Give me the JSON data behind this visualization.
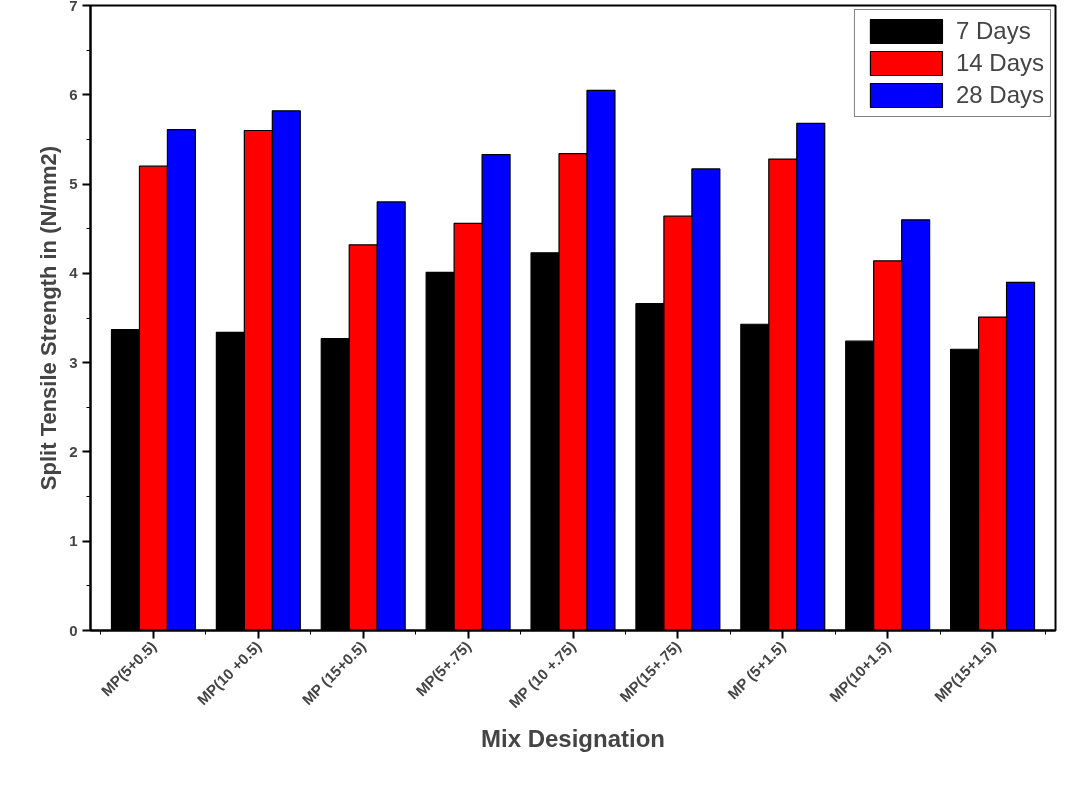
{
  "chart_data": {
    "type": "bar",
    "xlabel": "Mix Designation",
    "ylabel": "Split Tensile Strength in (N/mm2)",
    "categories": [
      "MP(5+0.5)",
      "MP(10 +0.5)",
      "MP (15+0.5)",
      "MP(5+.75)",
      "MP (10 +.75)",
      "MP(15+.75)",
      "MP (5+1.5)",
      "MP(10+1.5)",
      "MP(15+1.5)"
    ],
    "series": [
      {
        "name": "7 Days",
        "color": "#000000",
        "values": [
          3.37,
          3.34,
          3.27,
          4.01,
          4.23,
          3.66,
          3.43,
          3.24,
          3.15
        ]
      },
      {
        "name": "14 Days",
        "color": "#ff0000",
        "values": [
          5.2,
          5.6,
          4.32,
          4.56,
          5.34,
          4.64,
          5.28,
          4.14,
          3.51
        ]
      },
      {
        "name": "28 Days",
        "color": "#0000ff",
        "values": [
          5.61,
          5.82,
          4.8,
          5.33,
          6.05,
          5.17,
          5.68,
          4.6,
          3.9
        ]
      }
    ],
    "ylim": [
      0,
      7
    ],
    "yticks": [
      0,
      1,
      2,
      3,
      4,
      5,
      6,
      7
    ],
    "grid": false,
    "legend": "top right"
  }
}
